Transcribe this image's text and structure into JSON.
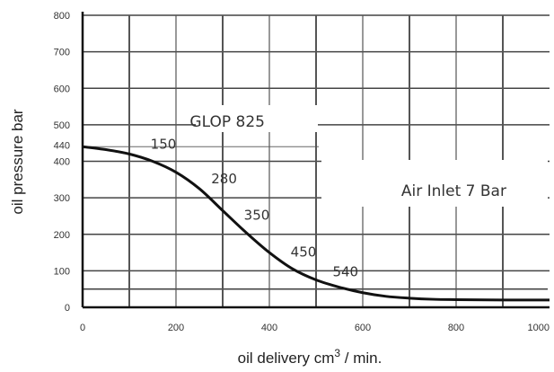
{
  "chart_data": {
    "type": "line",
    "xlabel": "oil delivery cm",
    "xlabel_sup": "3",
    "xlabel_suffix": " / min.",
    "ylabel": "oil pressure bar",
    "xlim": [
      0,
      1000
    ],
    "ylim": [
      0,
      800
    ],
    "x_ticks": [
      0,
      200,
      400,
      600,
      800,
      1000
    ],
    "y_ticks": [
      0,
      100,
      200,
      300,
      400,
      500,
      600,
      700,
      800
    ],
    "extra_y_label": {
      "value": 440,
      "text": "440"
    },
    "grid": true,
    "series": [
      {
        "x": [
          0,
          50,
          100,
          150,
          200,
          250,
          300,
          350,
          400,
          450,
          500,
          550,
          600,
          650,
          700,
          750,
          800,
          900,
          1000
        ],
        "y": [
          440,
          432,
          420,
          400,
          370,
          325,
          265,
          205,
          150,
          105,
          75,
          55,
          40,
          30,
          25,
          22,
          21,
          20,
          20
        ]
      }
    ],
    "point_labels": [
      {
        "x": 150,
        "y": 400,
        "text": "150"
      },
      {
        "x": 280,
        "y": 305,
        "text": "280"
      },
      {
        "x": 350,
        "y": 205,
        "text": "350"
      },
      {
        "x": 450,
        "y": 105,
        "text": "450"
      },
      {
        "x": 540,
        "y": 50,
        "text": "540"
      }
    ],
    "annotations": [
      {
        "text": "GLOP 825",
        "x": 310,
        "y": 510
      },
      {
        "text": "Air Inlet 7 Bar",
        "x": 795,
        "y": 320
      }
    ]
  }
}
